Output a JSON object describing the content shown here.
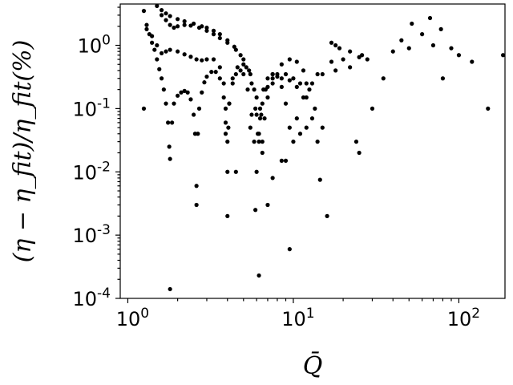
{
  "chart_data": {
    "type": "scatter",
    "xscale": "log",
    "yscale": "log",
    "xlim": [
      0.9,
      190
    ],
    "ylim": [
      0.0001,
      4.5
    ],
    "grid": false,
    "xlabel": "Q̄",
    "ylabel": "(η − η_fit)/η_fit(%)",
    "xticks": [
      {
        "value": 1,
        "base": "10",
        "exp": "0"
      },
      {
        "value": 10,
        "base": "10",
        "exp": "1"
      },
      {
        "value": 100,
        "base": "10",
        "exp": "2"
      }
    ],
    "yticks": [
      {
        "value": 1,
        "label": "10",
        "exp": "0",
        "full": "10.0",
        "mantissa": "10",
        "as": "1.0"
      },
      {
        "value": 0.1,
        "label": "10",
        "exp": "-1"
      },
      {
        "value": 0.01,
        "label": "10",
        "exp": "-2"
      },
      {
        "value": 0.001,
        "label": "10",
        "exp": "-3"
      },
      {
        "value": 0.0001,
        "label": "10",
        "exp": "-4"
      }
    ],
    "ytick_text": [
      "10.0",
      "10-1",
      "10-2",
      "10-3",
      "10-4"
    ],
    "marker_color": "#000000",
    "series": [
      {
        "points": [
          [
            1.25,
            3.5
          ],
          [
            1.3,
            2.1
          ],
          [
            1.35,
            1.5
          ],
          [
            1.4,
            1.1
          ],
          [
            1.45,
            0.85
          ],
          [
            1.5,
            0.6
          ],
          [
            1.55,
            0.42
          ],
          [
            1.6,
            0.3
          ],
          [
            1.65,
            0.2
          ],
          [
            1.7,
            0.12
          ],
          [
            1.75,
            0.06
          ],
          [
            1.78,
            0.025
          ],
          [
            1.8,
            0.016
          ],
          [
            1.85,
            0.06
          ],
          [
            1.9,
            0.12
          ],
          [
            2.0,
            0.16
          ],
          [
            2.1,
            0.18
          ],
          [
            2.2,
            0.19
          ],
          [
            2.3,
            0.18
          ],
          [
            2.4,
            0.14
          ],
          [
            2.5,
            0.08
          ],
          [
            2.55,
            0.04
          ],
          [
            2.6,
            0.006
          ],
          [
            2.65,
            0.04
          ],
          [
            2.7,
            0.1
          ],
          [
            2.8,
            0.18
          ],
          [
            2.9,
            0.26
          ],
          [
            3.0,
            0.32
          ],
          [
            3.2,
            0.38
          ],
          [
            3.4,
            0.38
          ],
          [
            3.6,
            0.3
          ],
          [
            3.8,
            0.15
          ],
          [
            3.9,
            0.06
          ],
          [
            4.0,
            0.01
          ],
          [
            4.05,
            0.05
          ],
          [
            4.1,
            0.12
          ],
          [
            4.3,
            0.25
          ],
          [
            4.5,
            0.35
          ],
          [
            4.8,
            0.4
          ],
          [
            5.0,
            0.35
          ],
          [
            5.3,
            0.2
          ],
          [
            5.6,
            0.08
          ],
          [
            5.8,
            0.03
          ],
          [
            6.0,
            0.01
          ],
          [
            6.2,
            0.04
          ],
          [
            6.5,
            0.12
          ],
          [
            7.0,
            0.22
          ],
          [
            7.5,
            0.3
          ],
          [
            8.0,
            0.35
          ],
          [
            9.0,
            0.35
          ],
          [
            10.0,
            0.3
          ],
          [
            11.0,
            0.25
          ],
          [
            12.0,
            0.15
          ],
          [
            13.0,
            0.07
          ],
          [
            14.0,
            0.03
          ]
        ]
      },
      {
        "points": [
          [
            1.3,
            1.8
          ],
          [
            1.4,
            1.4
          ],
          [
            1.5,
            1.0
          ],
          [
            1.6,
            0.75
          ],
          [
            1.7,
            0.8
          ],
          [
            1.8,
            0.85
          ],
          [
            2.0,
            0.8
          ],
          [
            2.2,
            0.72
          ],
          [
            2.4,
            0.66
          ],
          [
            2.6,
            0.6
          ],
          [
            2.8,
            0.58
          ],
          [
            3.0,
            0.6
          ],
          [
            3.3,
            0.6
          ],
          [
            3.6,
            0.45
          ],
          [
            3.8,
            0.25
          ],
          [
            3.9,
            0.1
          ],
          [
            4.0,
            0.03
          ],
          [
            4.1,
            0.12
          ],
          [
            4.3,
            0.3
          ],
          [
            4.6,
            0.45
          ],
          [
            5.0,
            0.5
          ],
          [
            5.4,
            0.4
          ],
          [
            5.8,
            0.2
          ],
          [
            6.0,
            0.08
          ],
          [
            6.2,
            0.03
          ],
          [
            6.4,
            0.08
          ],
          [
            6.8,
            0.2
          ],
          [
            7.5,
            0.35
          ],
          [
            8.5,
            0.5
          ],
          [
            9.5,
            0.6
          ],
          [
            10.5,
            0.55
          ],
          [
            11.5,
            0.4
          ],
          [
            12.5,
            0.2
          ],
          [
            13.5,
            0.1
          ],
          [
            15.0,
            0.05
          ]
        ]
      },
      {
        "points": [
          [
            1.5,
            4.2
          ],
          [
            1.6,
            3.6
          ],
          [
            1.7,
            3.2
          ],
          [
            1.8,
            2.9
          ],
          [
            2.0,
            2.6
          ],
          [
            2.2,
            2.4
          ],
          [
            2.5,
            2.2
          ],
          [
            2.8,
            2.0
          ],
          [
            3.0,
            1.9
          ],
          [
            3.3,
            1.7
          ],
          [
            3.6,
            1.5
          ],
          [
            4.0,
            1.2
          ],
          [
            4.4,
            0.95
          ],
          [
            4.8,
            0.7
          ],
          [
            5.2,
            0.45
          ],
          [
            5.6,
            0.25
          ],
          [
            5.9,
            0.1
          ],
          [
            6.1,
            0.04
          ],
          [
            6.3,
            0.1
          ],
          [
            6.6,
            0.2
          ],
          [
            7.0,
            0.3
          ],
          [
            7.5,
            0.35
          ],
          [
            8.0,
            0.32
          ],
          [
            8.5,
            0.22
          ],
          [
            9.0,
            0.12
          ],
          [
            9.5,
            0.05
          ],
          [
            10.0,
            0.03
          ],
          [
            10.5,
            0.07
          ],
          [
            11.5,
            0.15
          ],
          [
            13.0,
            0.25
          ],
          [
            15.0,
            0.35
          ],
          [
            18.0,
            0.4
          ],
          [
            22.0,
            0.45
          ]
        ]
      },
      {
        "points": [
          [
            1.6,
            3.0
          ],
          [
            1.7,
            2.5
          ],
          [
            1.8,
            2.1
          ],
          [
            1.9,
            1.9
          ],
          [
            2.0,
            2.0
          ],
          [
            2.2,
            2.1
          ],
          [
            2.4,
            2.05
          ],
          [
            2.7,
            1.9
          ],
          [
            3.0,
            1.7
          ],
          [
            3.3,
            1.5
          ],
          [
            3.6,
            1.3
          ],
          [
            4.0,
            1.1
          ],
          [
            4.5,
            0.85
          ],
          [
            5.0,
            0.6
          ],
          [
            5.5,
            0.35
          ],
          [
            6.0,
            0.15
          ],
          [
            6.3,
            0.07
          ],
          [
            6.5,
            0.03
          ],
          [
            6.7,
            0.07
          ],
          [
            7.0,
            0.15
          ],
          [
            7.5,
            0.25
          ],
          [
            8.5,
            0.3
          ],
          [
            9.5,
            0.28
          ],
          [
            10.5,
            0.22
          ],
          [
            12.0,
            0.25
          ],
          [
            14.0,
            0.35
          ],
          [
            17.0,
            0.55
          ],
          [
            20.0,
            0.6
          ],
          [
            25.0,
            0.65
          ]
        ]
      },
      {
        "points": [
          [
            1.8,
            0.00014
          ],
          [
            4.0,
            0.002
          ],
          [
            6.2,
            0.00023
          ],
          [
            9.5,
            0.0006
          ],
          [
            2.6,
            0.003
          ],
          [
            14.5,
            0.0075
          ],
          [
            5.9,
            0.0025
          ],
          [
            7.0,
            0.003
          ],
          [
            4.5,
            0.01
          ],
          [
            3.9,
            0.04
          ],
          [
            1.25,
            0.1
          ],
          [
            16.0,
            0.002
          ],
          [
            25.0,
            0.02
          ],
          [
            24.0,
            0.03
          ],
          [
            30.0,
            0.1
          ],
          [
            35.0,
            0.3
          ],
          [
            40.0,
            0.8
          ],
          [
            45.0,
            1.2
          ],
          [
            50.0,
            0.9
          ],
          [
            52.0,
            2.2
          ],
          [
            60.0,
            1.5
          ],
          [
            67.0,
            2.7
          ],
          [
            70.0,
            1.0
          ],
          [
            78.0,
            1.8
          ],
          [
            80.0,
            0.3
          ],
          [
            90.0,
            0.9
          ],
          [
            100.0,
            0.7
          ],
          [
            120.0,
            0.55
          ],
          [
            150.0,
            0.1
          ],
          [
            185.0,
            0.7
          ],
          [
            28.0,
            0.6
          ],
          [
            26.0,
            0.7
          ],
          [
            22.0,
            0.8
          ],
          [
            19.0,
            0.9
          ],
          [
            18.0,
            1.0
          ],
          [
            17.0,
            1.1
          ],
          [
            8.5,
            0.015
          ],
          [
            9.0,
            0.015
          ],
          [
            11.0,
            0.04
          ],
          [
            12.0,
            0.05
          ],
          [
            5.5,
            0.05
          ],
          [
            6.5,
            0.02
          ],
          [
            7.5,
            0.008
          ]
        ]
      }
    ]
  }
}
